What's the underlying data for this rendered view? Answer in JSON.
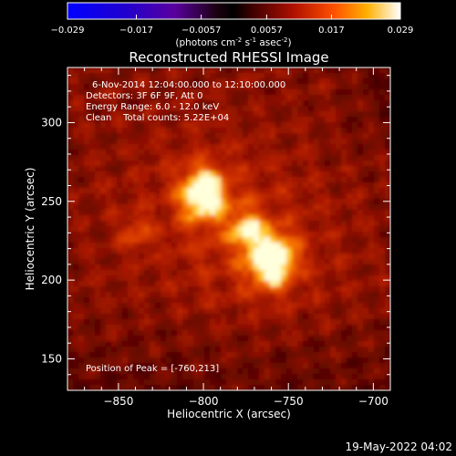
{
  "colorbar": {
    "ticks": [
      "-0.029",
      "-0.017",
      "-0.0057",
      "0.0057",
      "0.017",
      "0.029"
    ],
    "values": [
      -0.029,
      -0.017,
      -0.0057,
      0.0057,
      0.017,
      0.029
    ],
    "range": [
      -0.029,
      0.029
    ],
    "unit_main": "(photons cm",
    "unit_sup1": "-2",
    "unit_mid": " s",
    "unit_sup2": "-1",
    "unit_tail": " asec",
    "unit_sup3": "-2",
    "unit_end": ")"
  },
  "chart_data": {
    "type": "heatmap",
    "title": "Reconstructed RHESSI Image",
    "xlabel": "Heliocentric X (arcsec)",
    "ylabel": "Heliocentric Y (arcsec)",
    "xlim": [
      -880,
      -690
    ],
    "ylim": [
      130,
      335
    ],
    "xticks": [
      -850,
      -800,
      -750,
      -700
    ],
    "xtick_labels": [
      "−850",
      "−800",
      "−750",
      "−700"
    ],
    "yticks": [
      150,
      200,
      250,
      300
    ],
    "ytick_labels": [
      "150",
      "200",
      "250",
      "300"
    ],
    "sources": [
      {
        "x": -800,
        "y": 255,
        "intensity": 0.9
      },
      {
        "x": -760,
        "y": 213,
        "intensity": 1.0
      },
      {
        "x": -775,
        "y": 232,
        "intensity": 0.55
      },
      {
        "x": -840,
        "y": 230,
        "intensity": 0.3
      }
    ],
    "info_lines": [
      "6-Nov-2014 12:04:00.000 to 12:10:00.000",
      "Detectors: 3F 6F 9F, Att 0",
      "Energy Range: 6.0 - 12.0 keV",
      "Clean    Total counts: 5.22E+04"
    ],
    "peak_label": "Position of Peak = [-760,213]",
    "timestamp": "19-May-2022 04:02"
  }
}
